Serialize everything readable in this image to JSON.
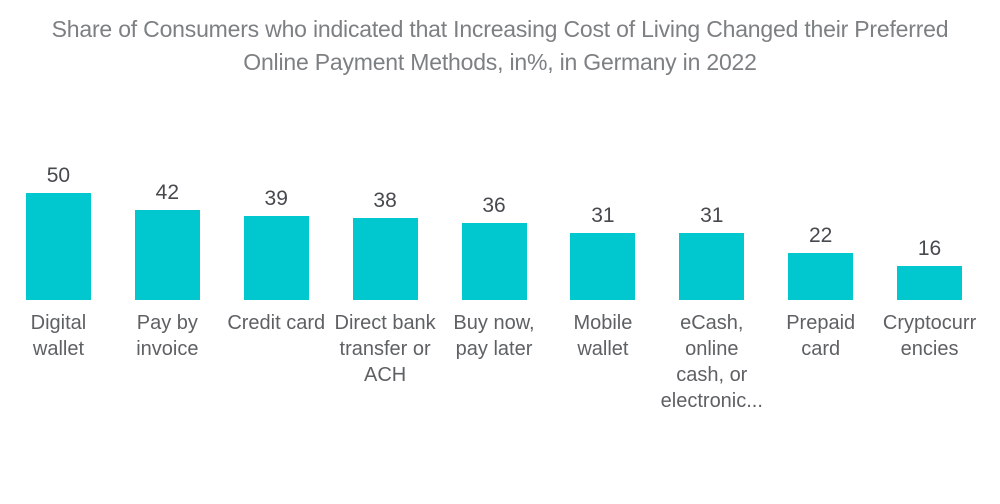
{
  "page": {
    "background_color": "#ffffff"
  },
  "chart_data": {
    "type": "bar",
    "title": "Share of Consumers who indicated that Increasing Cost of Living Changed their Preferred Online Payment Methods, in%, in Germany in 2022",
    "title_lines": [
      "Share of Consumers who indicated that Increasing Cost of Living Changed their Preferred",
      "Online Payment Methods, in%, in Germany in 2022"
    ],
    "categories": [
      "Digital wallet",
      "Pay by invoice",
      "Credit card",
      "Direct bank transfer or ACH",
      "Buy now, pay later",
      "Mobile wallet",
      "eCash, online cash, or electronic...",
      "Prepaid card",
      "Cryptocurrencies"
    ],
    "category_display_lines": [
      [
        "Digital",
        "wallet"
      ],
      [
        "Pay by",
        "invoice"
      ],
      [
        "Credit card"
      ],
      [
        "Direct bank",
        "transfer or",
        "ACH"
      ],
      [
        "Buy now,",
        "pay later"
      ],
      [
        "Mobile",
        "wallet"
      ],
      [
        "eCash,",
        "online",
        "cash, or",
        "electronic..."
      ],
      [
        "Prepaid",
        "card"
      ],
      [
        "Cryptocurr",
        "encies"
      ]
    ],
    "values": [
      50,
      42,
      39,
      38,
      36,
      31,
      31,
      22,
      16
    ],
    "xlabel": "",
    "ylabel": "",
    "ylim": [
      0,
      55
    ],
    "grid": false,
    "legend": false,
    "axes_visible": false,
    "data_labels_position": "above-bars",
    "bar_color": "#00C8CE",
    "title_color": "#7C8083",
    "value_label_color": "#46494E",
    "category_label_color": "#5E6164",
    "pixels_per_unit": 2.15
  }
}
